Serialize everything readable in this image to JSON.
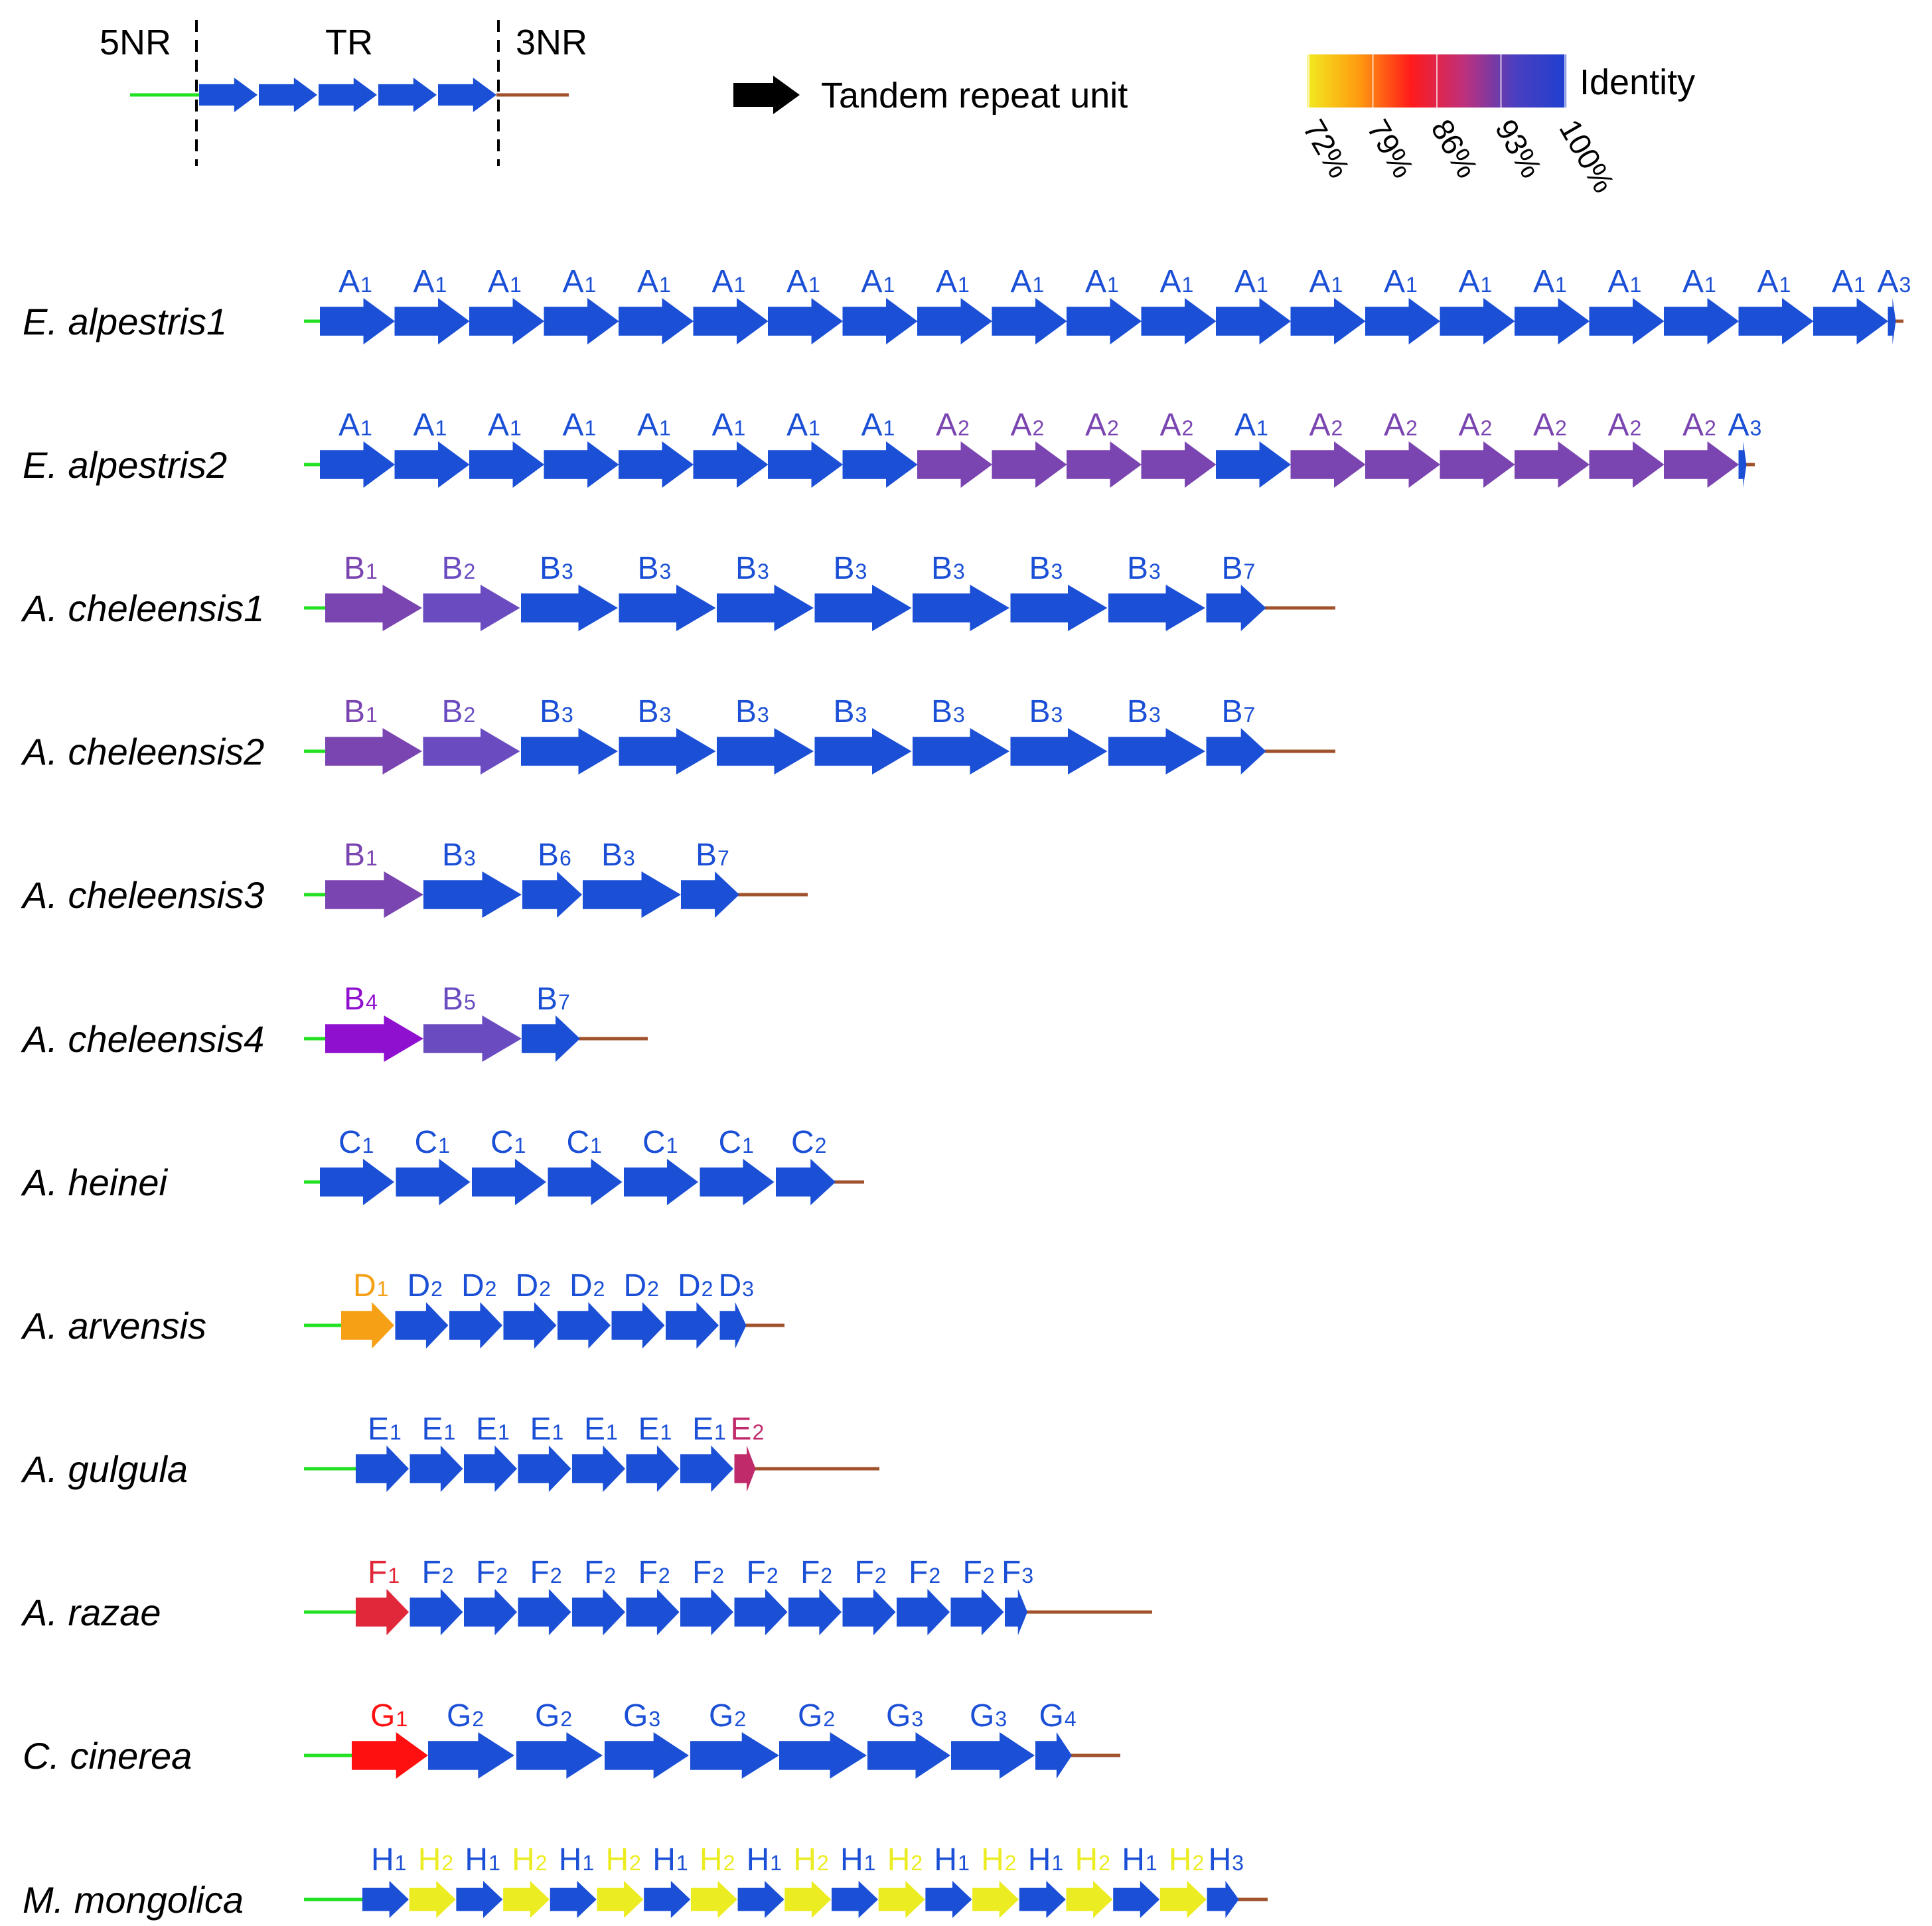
{
  "legend": {
    "region_5nr": "5NR",
    "region_tr": "TR",
    "region_3nr": "3NR",
    "unit_label": "Tandem repeat unit",
    "identity_label": "Identity",
    "scale_ticks": [
      "72%",
      "79%",
      "86%",
      "93%",
      "100%"
    ],
    "gradient_colors": [
      "#f2ea20",
      "#ff9a10",
      "#ff1a1a",
      "#c0307a",
      "#4b3fc0",
      "#1f3fd0"
    ]
  },
  "colors": {
    "blue": "#1a4fd6",
    "purple": "#7a45b0",
    "violet": "#6a4cc0",
    "magenta_violet": "#9010d0",
    "orange": "#f5a015",
    "crimson": "#c02a6a",
    "red": "#e0283a",
    "bright_red": "#ff1010",
    "yellow": "#ecec22",
    "flank_5": "#22e022",
    "flank_3": "#a0522d",
    "black": "#000000"
  },
  "rows": [
    {
      "name": "E. alpestris1",
      "units": [
        {
          "base": "A",
          "sub": "1",
          "c": "blue"
        },
        {
          "base": "A",
          "sub": "1",
          "c": "blue"
        },
        {
          "base": "A",
          "sub": "1",
          "c": "blue"
        },
        {
          "base": "A",
          "sub": "1",
          "c": "blue"
        },
        {
          "base": "A",
          "sub": "1",
          "c": "blue"
        },
        {
          "base": "A",
          "sub": "1",
          "c": "blue"
        },
        {
          "base": "A",
          "sub": "1",
          "c": "blue"
        },
        {
          "base": "A",
          "sub": "1",
          "c": "blue"
        },
        {
          "base": "A",
          "sub": "1",
          "c": "blue"
        },
        {
          "base": "A",
          "sub": "1",
          "c": "blue"
        },
        {
          "base": "A",
          "sub": "1",
          "c": "blue"
        },
        {
          "base": "A",
          "sub": "1",
          "c": "blue"
        },
        {
          "base": "A",
          "sub": "1",
          "c": "blue"
        },
        {
          "base": "A",
          "sub": "1",
          "c": "blue"
        },
        {
          "base": "A",
          "sub": "1",
          "c": "blue"
        },
        {
          "base": "A",
          "sub": "1",
          "c": "blue"
        },
        {
          "base": "A",
          "sub": "1",
          "c": "blue"
        },
        {
          "base": "A",
          "sub": "1",
          "c": "blue"
        },
        {
          "base": "A",
          "sub": "1",
          "c": "blue"
        },
        {
          "base": "A",
          "sub": "1",
          "c": "blue"
        },
        {
          "base": "A",
          "sub": "1",
          "c": "blue"
        },
        {
          "base": "A",
          "sub": "3",
          "c": "blue"
        }
      ]
    },
    {
      "name": "E. alpestris2",
      "units": [
        {
          "base": "A",
          "sub": "1",
          "c": "blue"
        },
        {
          "base": "A",
          "sub": "1",
          "c": "blue"
        },
        {
          "base": "A",
          "sub": "1",
          "c": "blue"
        },
        {
          "base": "A",
          "sub": "1",
          "c": "blue"
        },
        {
          "base": "A",
          "sub": "1",
          "c": "blue"
        },
        {
          "base": "A",
          "sub": "1",
          "c": "blue"
        },
        {
          "base": "A",
          "sub": "1",
          "c": "blue"
        },
        {
          "base": "A",
          "sub": "1",
          "c": "blue"
        },
        {
          "base": "A",
          "sub": "2",
          "c": "purple"
        },
        {
          "base": "A",
          "sub": "2",
          "c": "purple"
        },
        {
          "base": "A",
          "sub": "2",
          "c": "purple"
        },
        {
          "base": "A",
          "sub": "2",
          "c": "purple"
        },
        {
          "base": "A",
          "sub": "1",
          "c": "blue"
        },
        {
          "base": "A",
          "sub": "2",
          "c": "purple"
        },
        {
          "base": "A",
          "sub": "2",
          "c": "purple"
        },
        {
          "base": "A",
          "sub": "2",
          "c": "purple"
        },
        {
          "base": "A",
          "sub": "2",
          "c": "purple"
        },
        {
          "base": "A",
          "sub": "2",
          "c": "purple"
        },
        {
          "base": "A",
          "sub": "2",
          "c": "purple"
        },
        {
          "base": "A",
          "sub": "3",
          "c": "blue"
        }
      ]
    },
    {
      "name": "A. cheleensis1",
      "units": [
        {
          "base": "B",
          "sub": "1",
          "c": "purple"
        },
        {
          "base": "B",
          "sub": "2",
          "c": "violet"
        },
        {
          "base": "B",
          "sub": "3",
          "c": "blue"
        },
        {
          "base": "B",
          "sub": "3",
          "c": "blue"
        },
        {
          "base": "B",
          "sub": "3",
          "c": "blue"
        },
        {
          "base": "B",
          "sub": "3",
          "c": "blue"
        },
        {
          "base": "B",
          "sub": "3",
          "c": "blue"
        },
        {
          "base": "B",
          "sub": "3",
          "c": "blue"
        },
        {
          "base": "B",
          "sub": "3",
          "c": "blue"
        },
        {
          "base": "B",
          "sub": "7",
          "c": "blue"
        }
      ]
    },
    {
      "name": "A. cheleensis2",
      "units": [
        {
          "base": "B",
          "sub": "1",
          "c": "purple"
        },
        {
          "base": "B",
          "sub": "2",
          "c": "violet"
        },
        {
          "base": "B",
          "sub": "3",
          "c": "blue"
        },
        {
          "base": "B",
          "sub": "3",
          "c": "blue"
        },
        {
          "base": "B",
          "sub": "3",
          "c": "blue"
        },
        {
          "base": "B",
          "sub": "3",
          "c": "blue"
        },
        {
          "base": "B",
          "sub": "3",
          "c": "blue"
        },
        {
          "base": "B",
          "sub": "3",
          "c": "blue"
        },
        {
          "base": "B",
          "sub": "3",
          "c": "blue"
        },
        {
          "base": "B",
          "sub": "7",
          "c": "blue"
        }
      ]
    },
    {
      "name": "A. cheleensis3",
      "units": [
        {
          "base": "B",
          "sub": "1",
          "c": "purple"
        },
        {
          "base": "B",
          "sub": "3",
          "c": "blue"
        },
        {
          "base": "B",
          "sub": "6",
          "c": "blue"
        },
        {
          "base": "B",
          "sub": "3",
          "c": "blue"
        },
        {
          "base": "B",
          "sub": "7",
          "c": "blue"
        }
      ]
    },
    {
      "name": "A. cheleensis4",
      "units": [
        {
          "base": "B",
          "sub": "4",
          "c": "magenta_violet"
        },
        {
          "base": "B",
          "sub": "5",
          "c": "violet"
        },
        {
          "base": "B",
          "sub": "7",
          "c": "blue"
        }
      ]
    },
    {
      "name": "A. heinei",
      "units": [
        {
          "base": "C",
          "sub": "1",
          "c": "blue"
        },
        {
          "base": "C",
          "sub": "1",
          "c": "blue"
        },
        {
          "base": "C",
          "sub": "1",
          "c": "blue"
        },
        {
          "base": "C",
          "sub": "1",
          "c": "blue"
        },
        {
          "base": "C",
          "sub": "1",
          "c": "blue"
        },
        {
          "base": "C",
          "sub": "1",
          "c": "blue"
        },
        {
          "base": "C",
          "sub": "2",
          "c": "blue"
        }
      ]
    },
    {
      "name": "A. arvensis",
      "units": [
        {
          "base": "D",
          "sub": "1",
          "c": "orange"
        },
        {
          "base": "D",
          "sub": "2",
          "c": "blue"
        },
        {
          "base": "D",
          "sub": "2",
          "c": "blue"
        },
        {
          "base": "D",
          "sub": "2",
          "c": "blue"
        },
        {
          "base": "D",
          "sub": "2",
          "c": "blue"
        },
        {
          "base": "D",
          "sub": "2",
          "c": "blue"
        },
        {
          "base": "D",
          "sub": "2",
          "c": "blue"
        },
        {
          "base": "D",
          "sub": "3",
          "c": "blue"
        }
      ]
    },
    {
      "name": "A. gulgula",
      "units": [
        {
          "base": "E",
          "sub": "1",
          "c": "blue"
        },
        {
          "base": "E",
          "sub": "1",
          "c": "blue"
        },
        {
          "base": "E",
          "sub": "1",
          "c": "blue"
        },
        {
          "base": "E",
          "sub": "1",
          "c": "blue"
        },
        {
          "base": "E",
          "sub": "1",
          "c": "blue"
        },
        {
          "base": "E",
          "sub": "1",
          "c": "blue"
        },
        {
          "base": "E",
          "sub": "1",
          "c": "blue"
        },
        {
          "base": "E",
          "sub": "2",
          "c": "crimson"
        }
      ]
    },
    {
      "name": "A. razae",
      "units": [
        {
          "base": "F",
          "sub": "1",
          "c": "red"
        },
        {
          "base": "F",
          "sub": "2",
          "c": "blue"
        },
        {
          "base": "F",
          "sub": "2",
          "c": "blue"
        },
        {
          "base": "F",
          "sub": "2",
          "c": "blue"
        },
        {
          "base": "F",
          "sub": "2",
          "c": "blue"
        },
        {
          "base": "F",
          "sub": "2",
          "c": "blue"
        },
        {
          "base": "F",
          "sub": "2",
          "c": "blue"
        },
        {
          "base": "F",
          "sub": "2",
          "c": "blue"
        },
        {
          "base": "F",
          "sub": "2",
          "c": "blue"
        },
        {
          "base": "F",
          "sub": "2",
          "c": "blue"
        },
        {
          "base": "F",
          "sub": "2",
          "c": "blue"
        },
        {
          "base": "F",
          "sub": "2",
          "c": "blue"
        },
        {
          "base": "F",
          "sub": "3",
          "c": "blue"
        }
      ]
    },
    {
      "name": "C. cinerea",
      "units": [
        {
          "base": "G",
          "sub": "1",
          "c": "bright_red"
        },
        {
          "base": "G",
          "sub": "2",
          "c": "blue"
        },
        {
          "base": "G",
          "sub": "2",
          "c": "blue"
        },
        {
          "base": "G",
          "sub": "3",
          "c": "blue"
        },
        {
          "base": "G",
          "sub": "2",
          "c": "blue"
        },
        {
          "base": "G",
          "sub": "2",
          "c": "blue"
        },
        {
          "base": "G",
          "sub": "3",
          "c": "blue"
        },
        {
          "base": "G",
          "sub": "3",
          "c": "blue"
        },
        {
          "base": "G",
          "sub": "4",
          "c": "blue"
        }
      ]
    },
    {
      "name": "M. mongolica",
      "units": [
        {
          "base": "H",
          "sub": "1",
          "c": "blue"
        },
        {
          "base": "H",
          "sub": "2",
          "c": "yellow"
        },
        {
          "base": "H",
          "sub": "1",
          "c": "blue"
        },
        {
          "base": "H",
          "sub": "2",
          "c": "yellow"
        },
        {
          "base": "H",
          "sub": "1",
          "c": "blue"
        },
        {
          "base": "H",
          "sub": "2",
          "c": "yellow"
        },
        {
          "base": "H",
          "sub": "1",
          "c": "blue"
        },
        {
          "base": "H",
          "sub": "2",
          "c": "yellow"
        },
        {
          "base": "H",
          "sub": "1",
          "c": "blue"
        },
        {
          "base": "H",
          "sub": "2",
          "c": "yellow"
        },
        {
          "base": "H",
          "sub": "1",
          "c": "blue"
        },
        {
          "base": "H",
          "sub": "2",
          "c": "yellow"
        },
        {
          "base": "H",
          "sub": "1",
          "c": "blue"
        },
        {
          "base": "H",
          "sub": "2",
          "c": "yellow"
        },
        {
          "base": "H",
          "sub": "1",
          "c": "blue"
        },
        {
          "base": "H",
          "sub": "2",
          "c": "yellow"
        },
        {
          "base": "H",
          "sub": "1",
          "c": "blue"
        },
        {
          "base": "H",
          "sub": "2",
          "c": "yellow"
        },
        {
          "base": "H",
          "sub": "3",
          "c": "blue"
        }
      ]
    }
  ]
}
